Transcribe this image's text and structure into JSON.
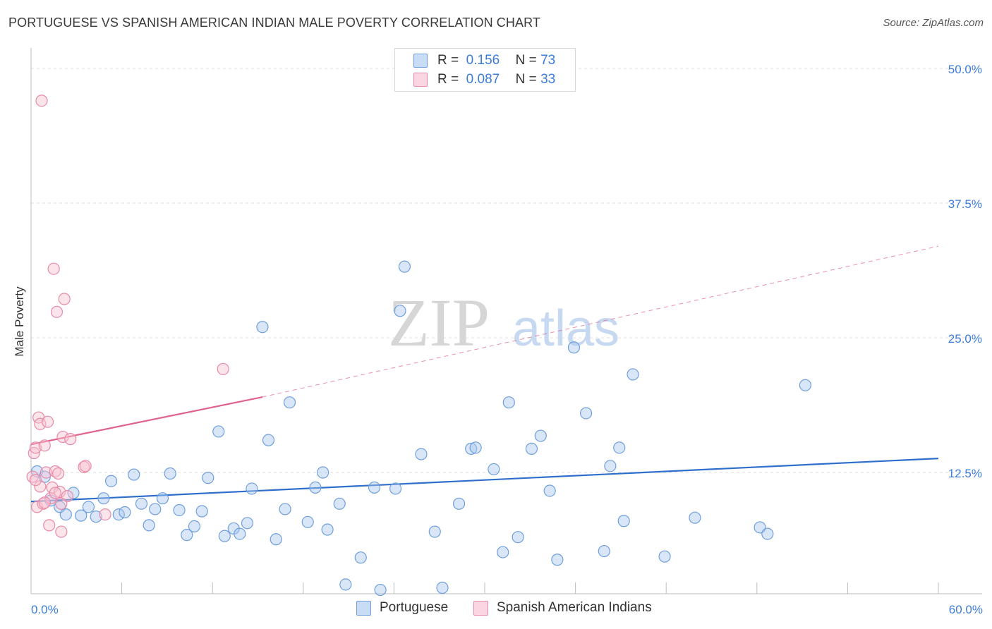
{
  "title": "PORTUGUESE VS SPANISH AMERICAN INDIAN MALE POVERTY CORRELATION CHART",
  "source": "Source: ZipAtlas.com",
  "watermark": {
    "zip": "ZIP",
    "atlas": "atlas"
  },
  "legend": {
    "rows": [
      {
        "r_label": "R =",
        "r_value": "0.156",
        "n_label": "N =",
        "n_value": "73",
        "color": "#a9c8f0",
        "border": "#6f9fdc"
      },
      {
        "r_label": "R =",
        "r_value": "0.087",
        "n_label": "N =",
        "n_value": "33",
        "color": "#f8c3d3",
        "border": "#e88aa8"
      }
    ]
  },
  "bottom_legend": {
    "items": [
      {
        "label": "Portuguese",
        "color": "#a9c8f0",
        "border": "#6f9fdc"
      },
      {
        "label": "Spanish American Indians",
        "color": "#f8c3d3",
        "border": "#e88aa8"
      }
    ]
  },
  "chart_data": {
    "type": "scatter",
    "title": "PORTUGUESE VS SPANISH AMERICAN INDIAN MALE POVERTY CORRELATION CHART",
    "xlabel": "",
    "ylabel": "Male Poverty",
    "xlim": [
      0,
      60
    ],
    "ylim": [
      0,
      52
    ],
    "x_tick_labels": [
      "0.0%",
      "60.0%"
    ],
    "y_ticks": [
      12.5,
      25.0,
      37.5,
      50.0
    ],
    "y_tick_labels": [
      "12.5%",
      "25.0%",
      "37.5%",
      "50.0%"
    ],
    "grid": true,
    "series": [
      {
        "name": "Portuguese",
        "color": "#6f9fdc",
        "fill": "#a9c8f0",
        "trend": {
          "x": [
            0,
            60
          ],
          "y": [
            9.8,
            13.8
          ],
          "style": "solid",
          "color": "#2f6fcb"
        },
        "points": [
          [
            0.4,
            12.6
          ],
          [
            0.9,
            12.1
          ],
          [
            1.3,
            9.9
          ],
          [
            1.9,
            9.3
          ],
          [
            2.3,
            8.6
          ],
          [
            2.8,
            10.6
          ],
          [
            3.3,
            8.5
          ],
          [
            3.8,
            9.3
          ],
          [
            4.3,
            8.4
          ],
          [
            4.8,
            10.1
          ],
          [
            5.3,
            11.7
          ],
          [
            5.8,
            8.6
          ],
          [
            6.2,
            8.8
          ],
          [
            6.8,
            12.3
          ],
          [
            7.3,
            9.6
          ],
          [
            7.8,
            7.6
          ],
          [
            8.2,
            9.1
          ],
          [
            8.7,
            10.1
          ],
          [
            9.2,
            12.4
          ],
          [
            9.8,
            9.0
          ],
          [
            10.3,
            6.7
          ],
          [
            10.8,
            7.5
          ],
          [
            11.3,
            8.9
          ],
          [
            11.7,
            12.0
          ],
          [
            12.4,
            16.3
          ],
          [
            12.8,
            6.6
          ],
          [
            13.4,
            7.3
          ],
          [
            13.8,
            6.8
          ],
          [
            14.3,
            7.8
          ],
          [
            14.6,
            11.0
          ],
          [
            15.3,
            26.0
          ],
          [
            15.7,
            15.5
          ],
          [
            16.2,
            6.3
          ],
          [
            16.8,
            9.1
          ],
          [
            17.1,
            19.0
          ],
          [
            18.3,
            7.9
          ],
          [
            18.8,
            11.1
          ],
          [
            19.3,
            12.5
          ],
          [
            19.6,
            7.2
          ],
          [
            20.4,
            9.6
          ],
          [
            20.8,
            2.1
          ],
          [
            21.8,
            4.6
          ],
          [
            22.7,
            11.1
          ],
          [
            23.1,
            1.6
          ],
          [
            24.1,
            11.0
          ],
          [
            24.4,
            27.5
          ],
          [
            24.7,
            31.6
          ],
          [
            25.8,
            14.2
          ],
          [
            26.7,
            7.0
          ],
          [
            27.2,
            1.8
          ],
          [
            28.3,
            9.6
          ],
          [
            29.1,
            14.7
          ],
          [
            29.4,
            14.8
          ],
          [
            30.6,
            12.8
          ],
          [
            31.2,
            5.1
          ],
          [
            31.6,
            19.0
          ],
          [
            32.2,
            6.5
          ],
          [
            33.1,
            14.7
          ],
          [
            33.7,
            15.9
          ],
          [
            34.3,
            10.8
          ],
          [
            34.8,
            4.4
          ],
          [
            35.9,
            24.1
          ],
          [
            36.7,
            18.0
          ],
          [
            37.9,
            5.2
          ],
          [
            38.3,
            13.1
          ],
          [
            38.9,
            14.8
          ],
          [
            39.2,
            8.0
          ],
          [
            39.8,
            21.6
          ],
          [
            41.9,
            4.7
          ],
          [
            43.9,
            8.3
          ],
          [
            48.2,
            7.4
          ],
          [
            48.7,
            6.8
          ],
          [
            51.2,
            20.6
          ]
        ]
      },
      {
        "name": "Spanish American Indians",
        "color": "#e88aa8",
        "fill": "#f8c3d3",
        "trend": {
          "x": [
            0,
            15.3
          ],
          "y": [
            15.1,
            19.5
          ],
          "style": "solid",
          "ext_x": [
            15.3,
            60
          ],
          "ext_y": [
            19.5,
            33.5
          ],
          "color": "#e0618a"
        },
        "points": [
          [
            0.1,
            12.1
          ],
          [
            0.2,
            14.3
          ],
          [
            0.3,
            14.8
          ],
          [
            0.4,
            9.3
          ],
          [
            0.5,
            17.6
          ],
          [
            0.6,
            17.0
          ],
          [
            0.6,
            11.2
          ],
          [
            0.7,
            47.0
          ],
          [
            0.8,
            9.6
          ],
          [
            0.9,
            15.0
          ],
          [
            1.0,
            12.5
          ],
          [
            1.1,
            17.2
          ],
          [
            1.2,
            7.6
          ],
          [
            1.3,
            10.1
          ],
          [
            1.4,
            11.1
          ],
          [
            1.5,
            31.4
          ],
          [
            1.6,
            12.6
          ],
          [
            1.7,
            27.4
          ],
          [
            1.8,
            12.4
          ],
          [
            1.9,
            10.7
          ],
          [
            2.0,
            7.0
          ],
          [
            2.1,
            15.8
          ],
          [
            2.2,
            28.6
          ],
          [
            2.4,
            10.3
          ],
          [
            2.6,
            15.6
          ],
          [
            3.5,
            13.0
          ],
          [
            3.6,
            13.1
          ],
          [
            4.9,
            8.6
          ],
          [
            12.7,
            22.1
          ],
          [
            0.3,
            11.8
          ],
          [
            0.9,
            9.7
          ],
          [
            1.6,
            10.6
          ],
          [
            2.0,
            9.6
          ]
        ]
      }
    ]
  }
}
